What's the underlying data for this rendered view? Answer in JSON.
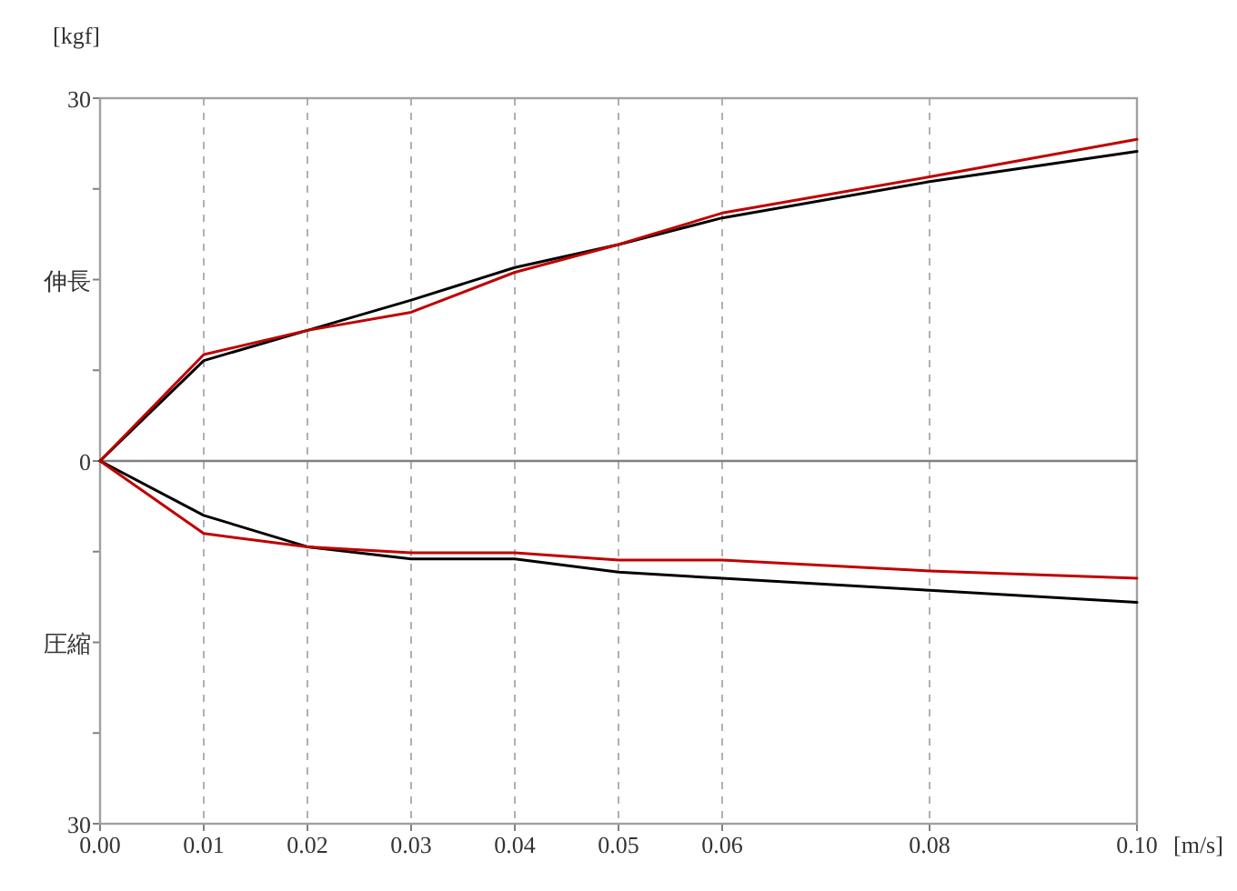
{
  "chart_data": {
    "type": "line",
    "ylabel": "[kgf]",
    "xlabel": "[m/s]",
    "x": [
      0,
      0.01,
      0.02,
      0.03,
      0.04,
      0.05,
      0.06,
      0.08,
      0.1
    ],
    "xlim": [
      0,
      0.1
    ],
    "xticks": [
      {
        "value": 0,
        "label": "0.00"
      },
      {
        "value": 0.01,
        "label": "0.01"
      },
      {
        "value": 0.02,
        "label": "0.02"
      },
      {
        "value": 0.03,
        "label": "0.03"
      },
      {
        "value": 0.04,
        "label": "0.04"
      },
      {
        "value": 0.05,
        "label": "0.05"
      },
      {
        "value": 0.06,
        "label": "0.06"
      },
      {
        "value": 0.08,
        "label": "0.08"
      },
      {
        "value": 0.1,
        "label": "0.10"
      }
    ],
    "ylim": [
      -30,
      30
    ],
    "yticks": [
      30,
      {
        "value": 22.5,
        "label": null
      },
      {
        "value": 15,
        "label": "伸長"
      },
      {
        "value": 7.5,
        "label": null
      },
      0,
      {
        "value": -7.5,
        "label": null
      },
      {
        "value": -15,
        "label": "圧縮"
      },
      {
        "value": -22.5,
        "label": null
      },
      {
        "value": -30,
        "label": "30"
      }
    ],
    "grid": "x",
    "marker": "none",
    "line_style": "solid",
    "ref_lines": [
      {
        "axis": "y",
        "value": 0,
        "color": "#808080"
      }
    ],
    "series": [
      {
        "color": "#000000",
        "values": [
          0,
          8.3,
          10.8,
          13.3,
          16.0,
          17.9,
          20.1,
          23.1,
          25.6
        ]
      },
      {
        "color": "#c00000",
        "values": [
          0,
          8.8,
          10.8,
          12.3,
          15.6,
          17.9,
          20.5,
          23.5,
          26.6
        ]
      },
      {
        "color": "#000000",
        "values": [
          0,
          -4.5,
          -7.1,
          -8.1,
          -8.1,
          -9.2,
          -9.7,
          -10.7,
          -11.7
        ]
      },
      {
        "color": "#c00000",
        "values": [
          0,
          -6.0,
          -7.1,
          -7.6,
          -7.6,
          -8.2,
          -8.2,
          -9.1,
          -9.7
        ]
      }
    ]
  }
}
